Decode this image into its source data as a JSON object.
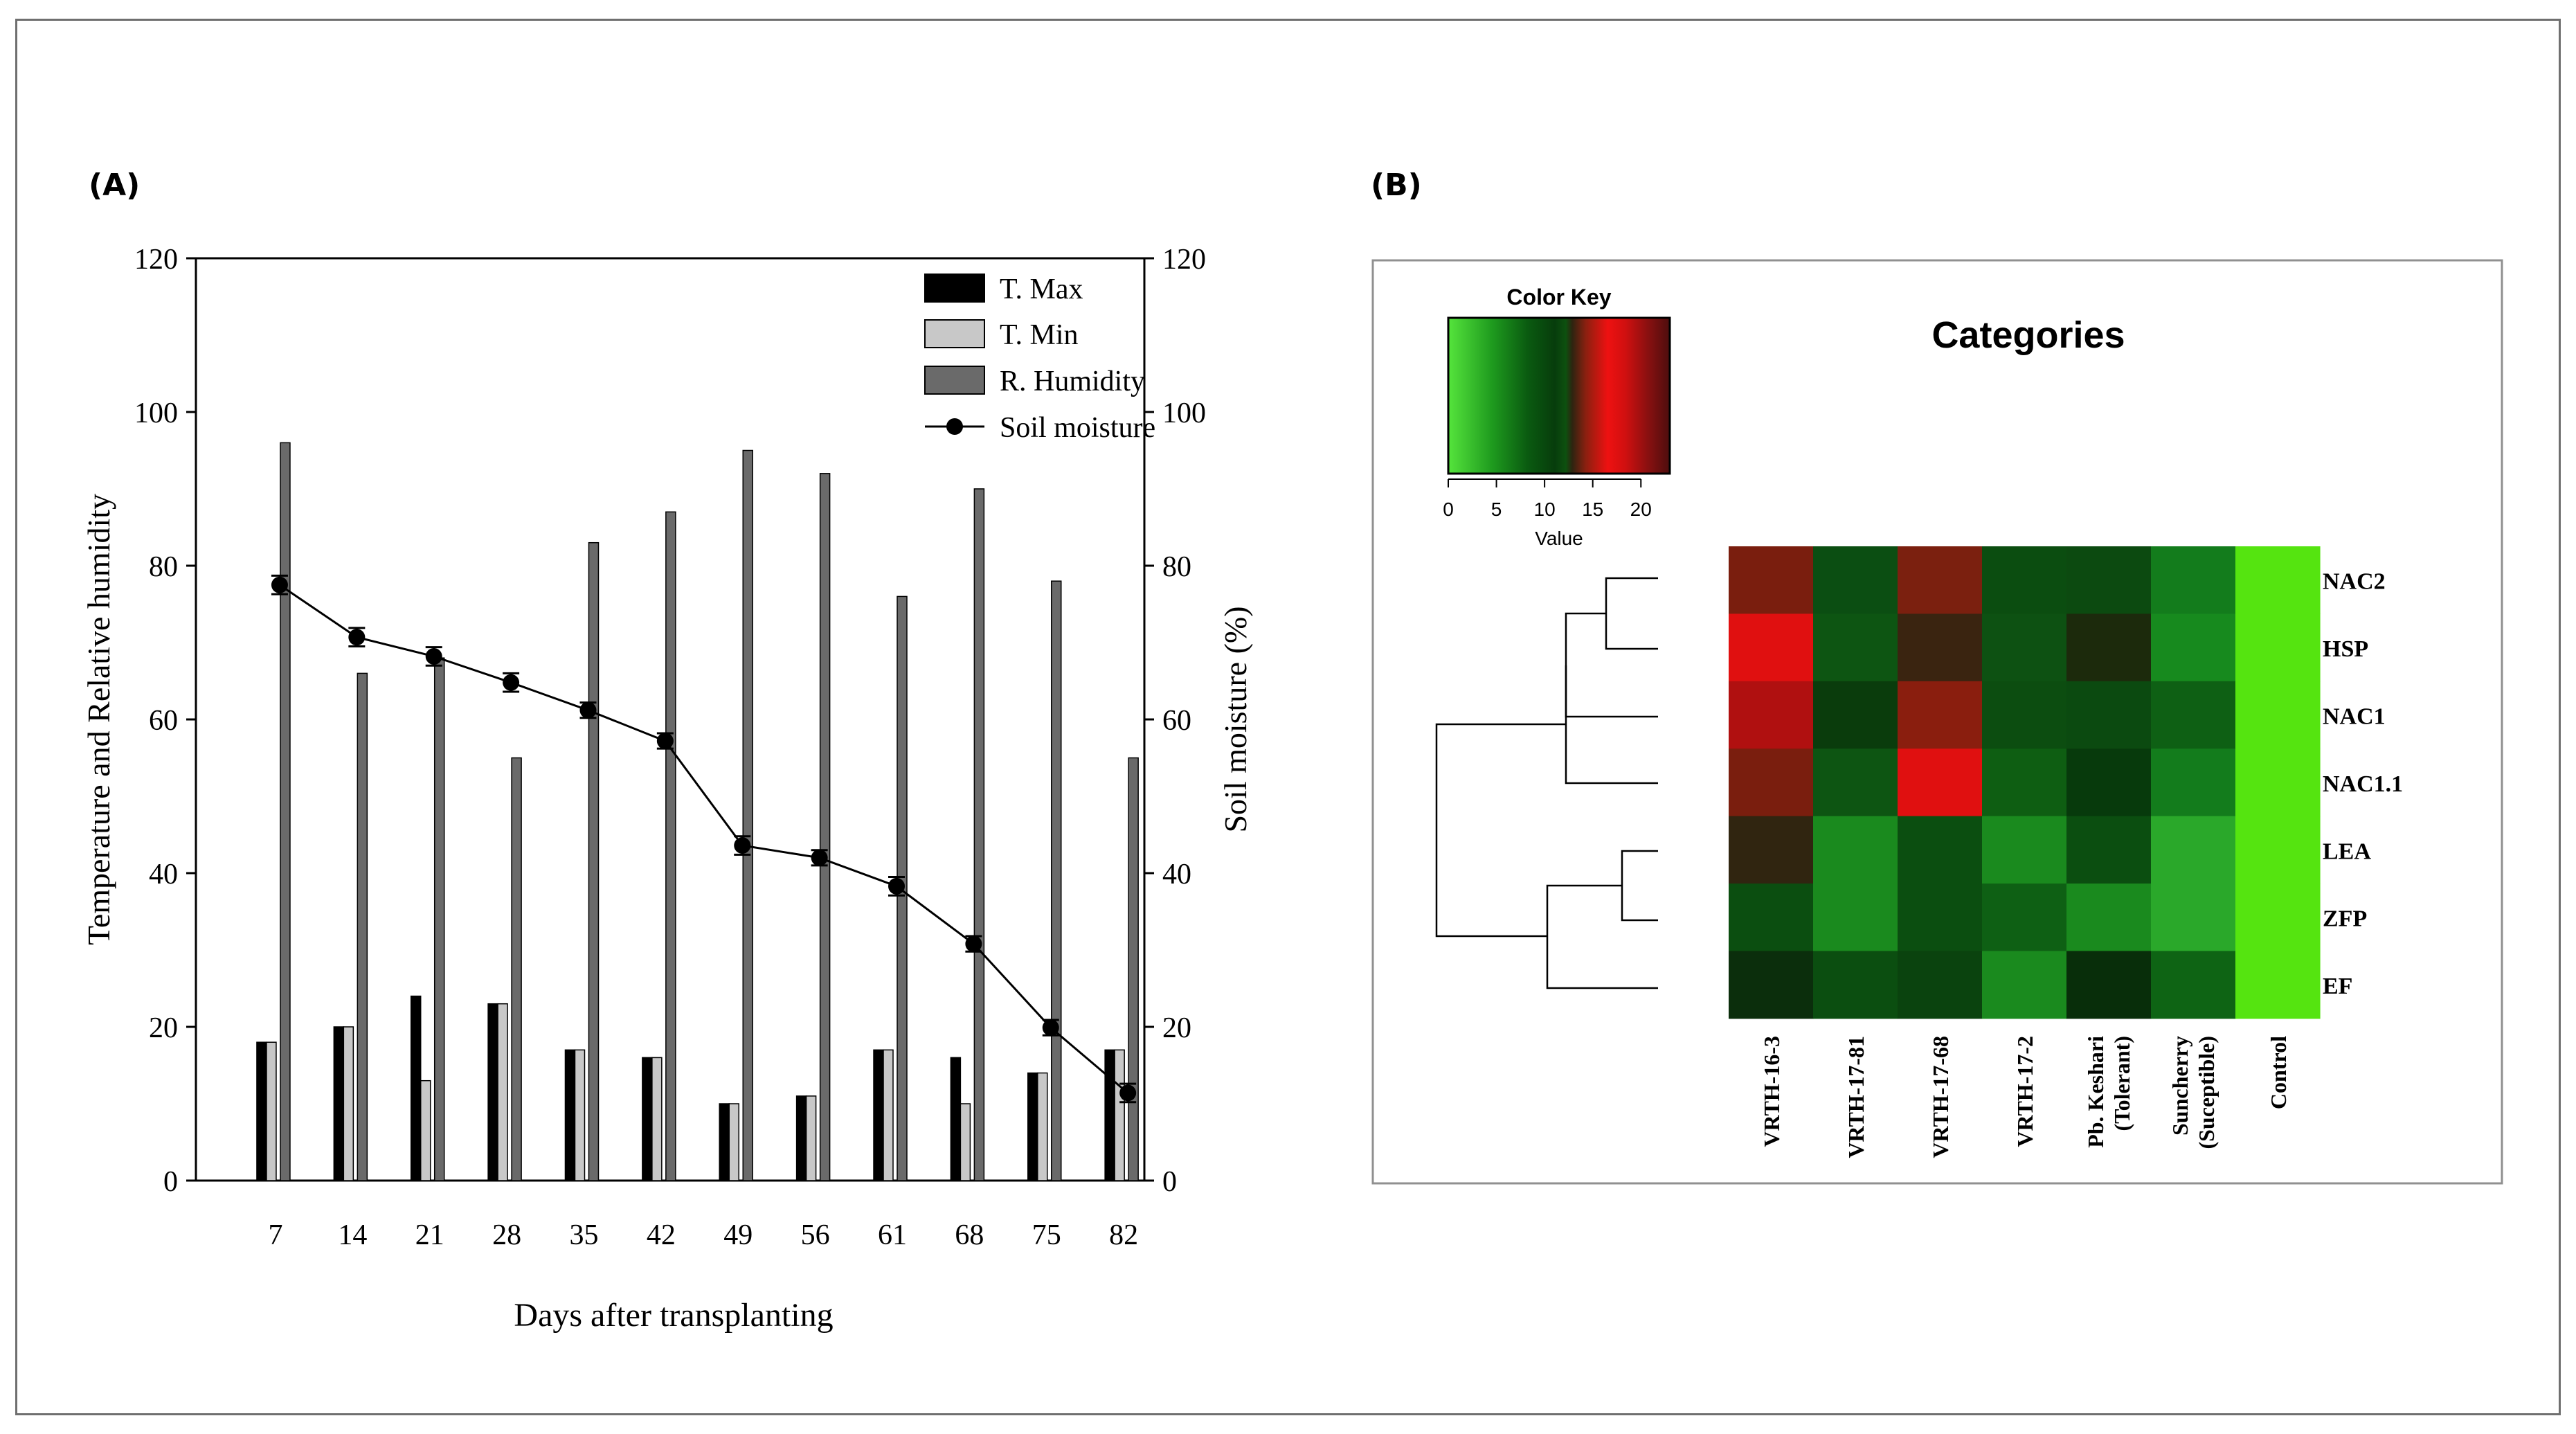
{
  "colors": {
    "t_max": "#000000",
    "t_min": "#c8c8c8",
    "r_humidity": "#6a6a6a",
    "soil_moisture": "#000000"
  },
  "panel_a": {
    "label": "(A)",
    "legend": [
      "T. Max",
      "T. Min",
      "R. Humidity",
      "Soil moisture"
    ]
  },
  "panel_b": {
    "label": "(B)",
    "color_key_title": "Color Key",
    "color_key_xlabel": "Value",
    "color_key_ticks": [
      "0",
      "5",
      "10",
      "15",
      "20"
    ],
    "title": "Categories"
  },
  "chart_data": [
    {
      "type": "bar",
      "title": "",
      "xlabel": "Days after transplanting",
      "ylabel": "Temperature and Relative humidity",
      "y2label": "Soil moisture (%)",
      "categories": [
        "7",
        "14",
        "21",
        "28",
        "35",
        "42",
        "49",
        "56",
        "61",
        "68",
        "75",
        "82"
      ],
      "ylim": [
        0,
        120
      ],
      "y2lim": [
        0,
        120
      ],
      "yticks": [
        "0",
        "20",
        "40",
        "60",
        "80",
        "100",
        "120"
      ],
      "y2ticks": [
        "0",
        "20",
        "40",
        "60",
        "80",
        "100",
        "120"
      ],
      "series": [
        {
          "name": "T. Max",
          "kind": "bar",
          "values": [
            18,
            20,
            24,
            23,
            17,
            16,
            10,
            11,
            17,
            16,
            14,
            17
          ]
        },
        {
          "name": "T. Min",
          "kind": "bar",
          "values": [
            18,
            20,
            13,
            23,
            17,
            16,
            10,
            11,
            17,
            10,
            14,
            17
          ]
        },
        {
          "name": "R. Humidity",
          "kind": "bar",
          "values": [
            96,
            66,
            68,
            55,
            83,
            87,
            95,
            92,
            76,
            90,
            78,
            55
          ]
        },
        {
          "name": "Soil moisture",
          "kind": "line",
          "axis": "right",
          "values": [
            77.5,
            70.7,
            68.2,
            64.8,
            61.2,
            57.2,
            43.6,
            42,
            38.3,
            30.8,
            19.9,
            11.4
          ],
          "error": [
            1.2,
            1.2,
            1.2,
            1.2,
            1.0,
            1.0,
            1.2,
            1.0,
            1.2,
            1.0,
            1.0,
            1.2
          ]
        }
      ],
      "legend_position": "top-right"
    },
    {
      "type": "heatmap",
      "title": "Categories",
      "columns": [
        "VRTH-16-3",
        "VRTH-17-81",
        "VRTH-17-68",
        "VRTH-17-2",
        "Pb. Keshari (Tolerant)",
        "Suncherry (Suceptible)",
        "Control"
      ],
      "rows": [
        "NAC2",
        "HSP",
        "NAC1",
        "NAC1.1",
        "LEA",
        "ZFP",
        "EF"
      ],
      "values": [
        [
          18,
          8,
          18,
          8,
          9,
          6,
          0
        ],
        [
          21,
          8,
          14,
          8,
          11,
          5,
          0
        ],
        [
          20,
          9,
          19,
          8,
          8,
          7,
          0
        ],
        [
          18,
          8,
          21,
          7,
          9,
          6,
          0
        ],
        [
          12,
          4,
          8,
          4,
          8,
          2,
          0
        ],
        [
          8,
          4,
          8,
          6,
          4,
          2,
          0
        ],
        [
          11,
          8,
          9,
          4,
          11,
          7,
          0
        ]
      ],
      "value_range": [
        0,
        23
      ],
      "color_key": {
        "ticks": [
          0,
          5,
          10,
          15,
          20
        ],
        "label": "Value"
      },
      "row_dendrogram": true
    }
  ]
}
